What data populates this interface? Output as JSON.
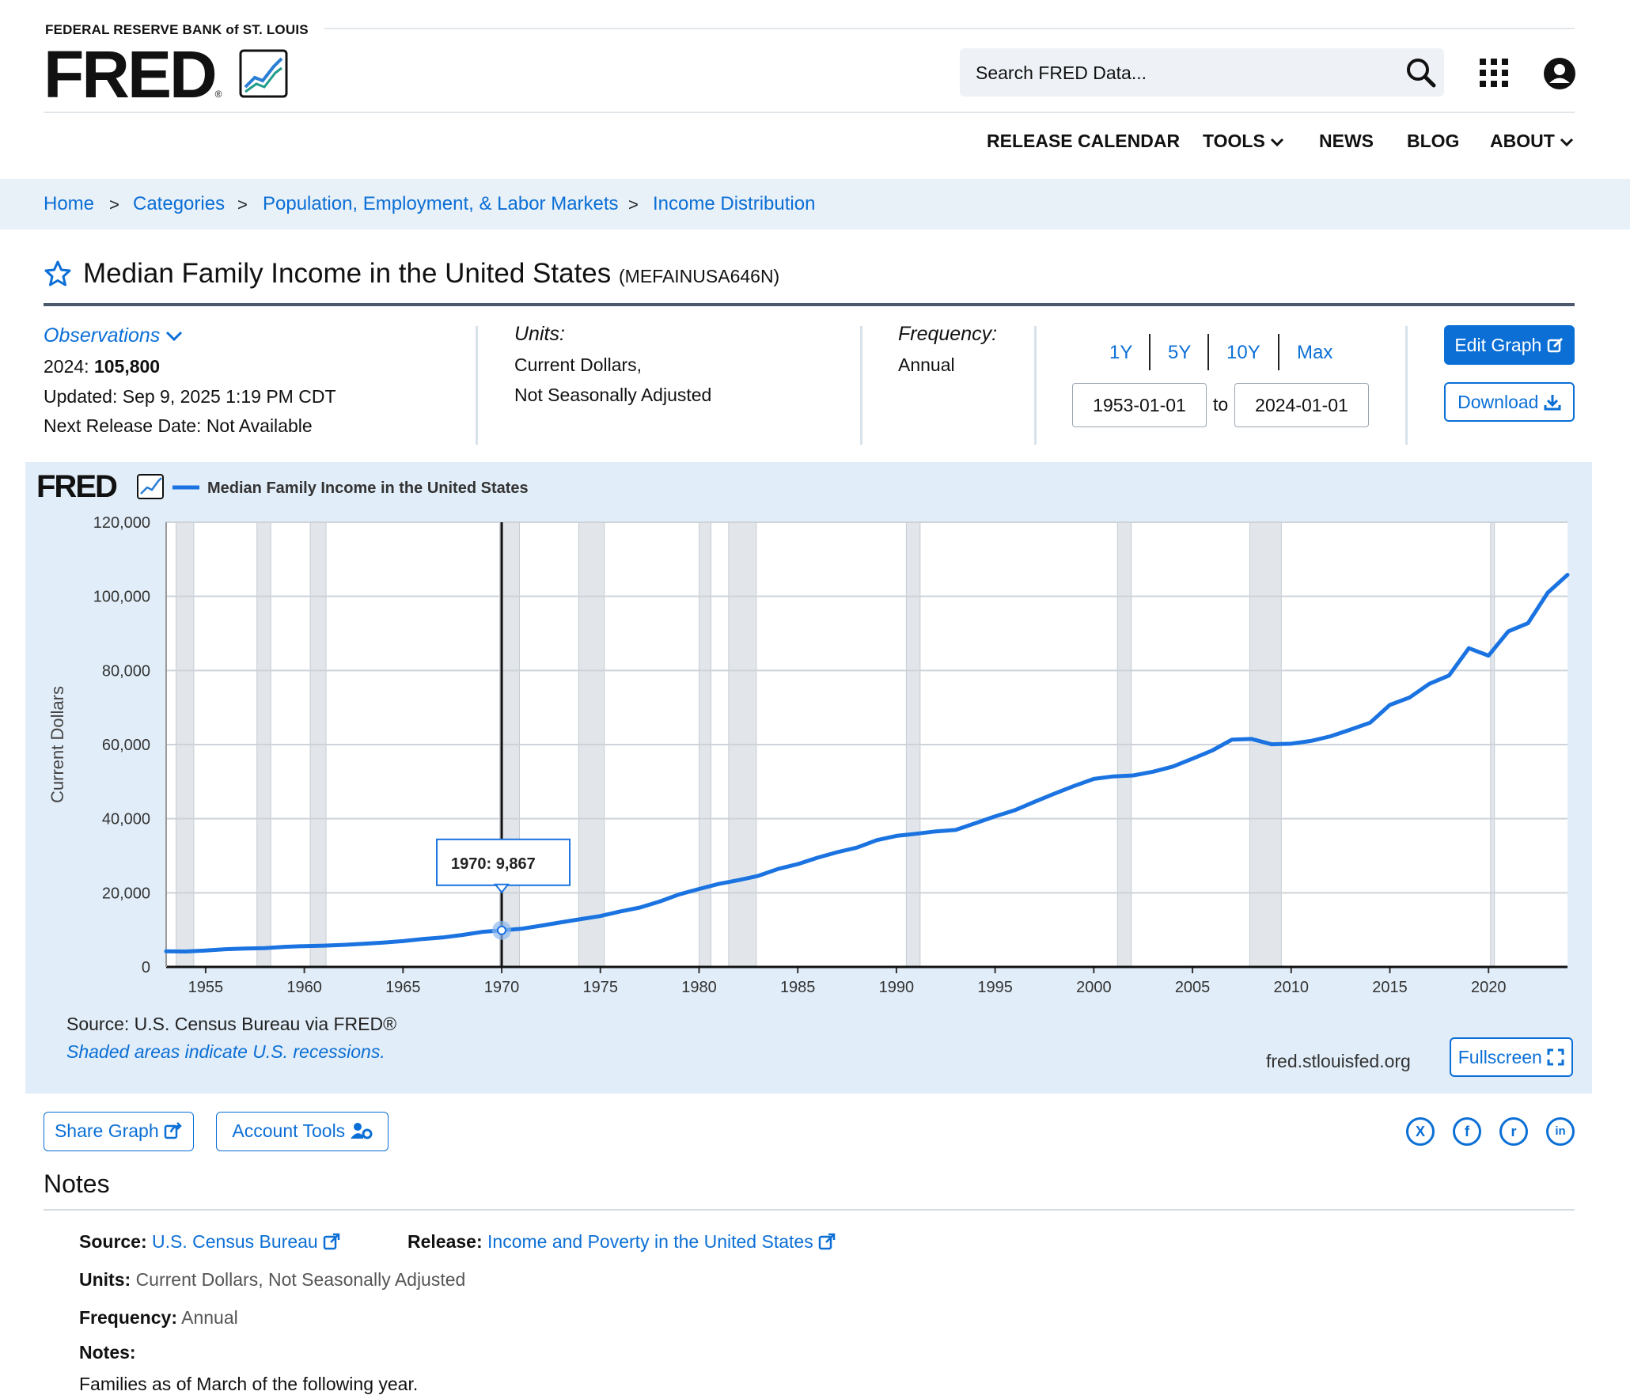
{
  "header": {
    "org": "FEDERAL RESERVE BANK of ST. LOUIS",
    "logo": "FRED",
    "logo_reg": "®",
    "search_placeholder": "Search FRED Data...",
    "nav": [
      "RELEASE CALENDAR",
      "TOOLS",
      "NEWS",
      "BLOG",
      "ABOUT"
    ]
  },
  "breadcrumb": [
    "Home",
    "Categories",
    "Population, Employment, & Labor Markets",
    "Income Distribution"
  ],
  "breadcrumb_sep": ">",
  "series": {
    "title": "Median Family Income in the United States",
    "id": "(MEFAINUSA646N)",
    "observations_label": "Observations",
    "latest_period": "2024:",
    "latest_value": "105,800",
    "updated": "Updated: Sep 9, 2025 1:19 PM CDT",
    "next_release": "Next Release Date: Not Available",
    "units_label": "Units:",
    "units_line1": "Current Dollars,",
    "units_line2": "Not Seasonally Adjusted",
    "frequency_label": "Frequency:",
    "frequency": "Annual"
  },
  "range": {
    "buttons": [
      "1Y",
      "5Y",
      "10Y",
      "Max"
    ],
    "start": "1953-01-01",
    "to": "to",
    "end": "2024-01-01"
  },
  "actions": {
    "edit_graph": "Edit Graph",
    "download": "Download",
    "share_graph": "Share Graph",
    "account_tools": "Account Tools",
    "fullscreen": "Fullscreen"
  },
  "graph_footer": {
    "source": "Source: U.S. Census Bureau via FRED®",
    "recessions": "Shaded areas indicate U.S. recessions.",
    "site": "fred.stlouisfed.org"
  },
  "tooltip": {
    "year": "1970:",
    "value": "9,867"
  },
  "social": [
    {
      "name": "x-icon",
      "glyph": "X"
    },
    {
      "name": "facebook-icon",
      "glyph": "f"
    },
    {
      "name": "reddit-icon",
      "glyph": "r"
    },
    {
      "name": "linkedin-icon",
      "glyph": "in"
    }
  ],
  "notes": {
    "title": "Notes",
    "source_label": "Source:",
    "source_value": "U.S. Census Bureau",
    "release_label": "Release:",
    "release_value": "Income and Poverty in the United States",
    "units_label": "Units:",
    "units_value": "Current Dollars, Not Seasonally Adjusted",
    "frequency_label": "Frequency:",
    "frequency_value": "Annual",
    "notes_label": "Notes:",
    "notes_text": "Families as of March of the following year."
  },
  "colors": {
    "accent": "#0b6fd6",
    "line": "#1a73e0",
    "panel": "#e1edf8",
    "recession": "#e2e6ea"
  },
  "chart_data": {
    "type": "line",
    "legend": "Median Family Income in the United States",
    "ylabel": "Current Dollars",
    "xlim": [
      1953,
      2024
    ],
    "ylim": [
      0,
      120000
    ],
    "yticks": [
      0,
      20000,
      40000,
      60000,
      80000,
      100000,
      120000
    ],
    "ytick_labels": [
      "0",
      "20,000",
      "40,000",
      "60,000",
      "80,000",
      "100,000",
      "120,000"
    ],
    "xticks": [
      1955,
      1960,
      1965,
      1970,
      1975,
      1980,
      1985,
      1990,
      1995,
      2000,
      2005,
      2010,
      2015,
      2020
    ],
    "grid": true,
    "recessions": [
      [
        1953.5,
        1954.4
      ],
      [
        1957.6,
        1958.3
      ],
      [
        1960.3,
        1961.1
      ],
      [
        1969.9,
        1970.9
      ],
      [
        1973.9,
        1975.2
      ],
      [
        1980.0,
        1980.6
      ],
      [
        1981.5,
        1982.9
      ],
      [
        1990.5,
        1991.2
      ],
      [
        2001.2,
        2001.9
      ],
      [
        2007.9,
        2009.5
      ],
      [
        2020.1,
        2020.3
      ]
    ],
    "x": [
      1953,
      1954,
      1955,
      1956,
      1957,
      1958,
      1959,
      1960,
      1961,
      1962,
      1963,
      1964,
      1965,
      1966,
      1967,
      1968,
      1969,
      1970,
      1971,
      1972,
      1973,
      1974,
      1975,
      1976,
      1977,
      1978,
      1979,
      1980,
      1981,
      1982,
      1983,
      1984,
      1985,
      1986,
      1987,
      1988,
      1989,
      1990,
      1991,
      1992,
      1993,
      1994,
      1995,
      1996,
      1997,
      1998,
      1999,
      2000,
      2001,
      2002,
      2003,
      2004,
      2005,
      2006,
      2007,
      2008,
      2009,
      2010,
      2011,
      2012,
      2013,
      2014,
      2015,
      2016,
      2017,
      2018,
      2019,
      2020,
      2021,
      2022,
      2023,
      2024
    ],
    "values": [
      4233,
      4173,
      4421,
      4783,
      4971,
      5087,
      5417,
      5620,
      5735,
      5956,
      6249,
      6569,
      6957,
      7532,
      7933,
      8632,
      9433,
      9867,
      10285,
      11116,
      12051,
      12902,
      13719,
      14958,
      16009,
      17640,
      19587,
      21023,
      22388,
      23433,
      24580,
      26433,
      27735,
      29458,
      30970,
      32191,
      34213,
      35353,
      35939,
      36573,
      36959,
      38782,
      40611,
      42300,
      44568,
      46737,
      48831,
      50732,
      51407,
      51680,
      52680,
      54061,
      56194,
      58407,
      61355,
      61521,
      60088,
      60236,
      60974,
      62241,
      64030,
      65910,
      70697,
      72707,
      76401,
      78646,
      86011,
      84008,
      90560,
      92750,
      101000,
      105800
    ],
    "tooltip_x": 1970,
    "tooltip_label": "1970: 9,867"
  }
}
